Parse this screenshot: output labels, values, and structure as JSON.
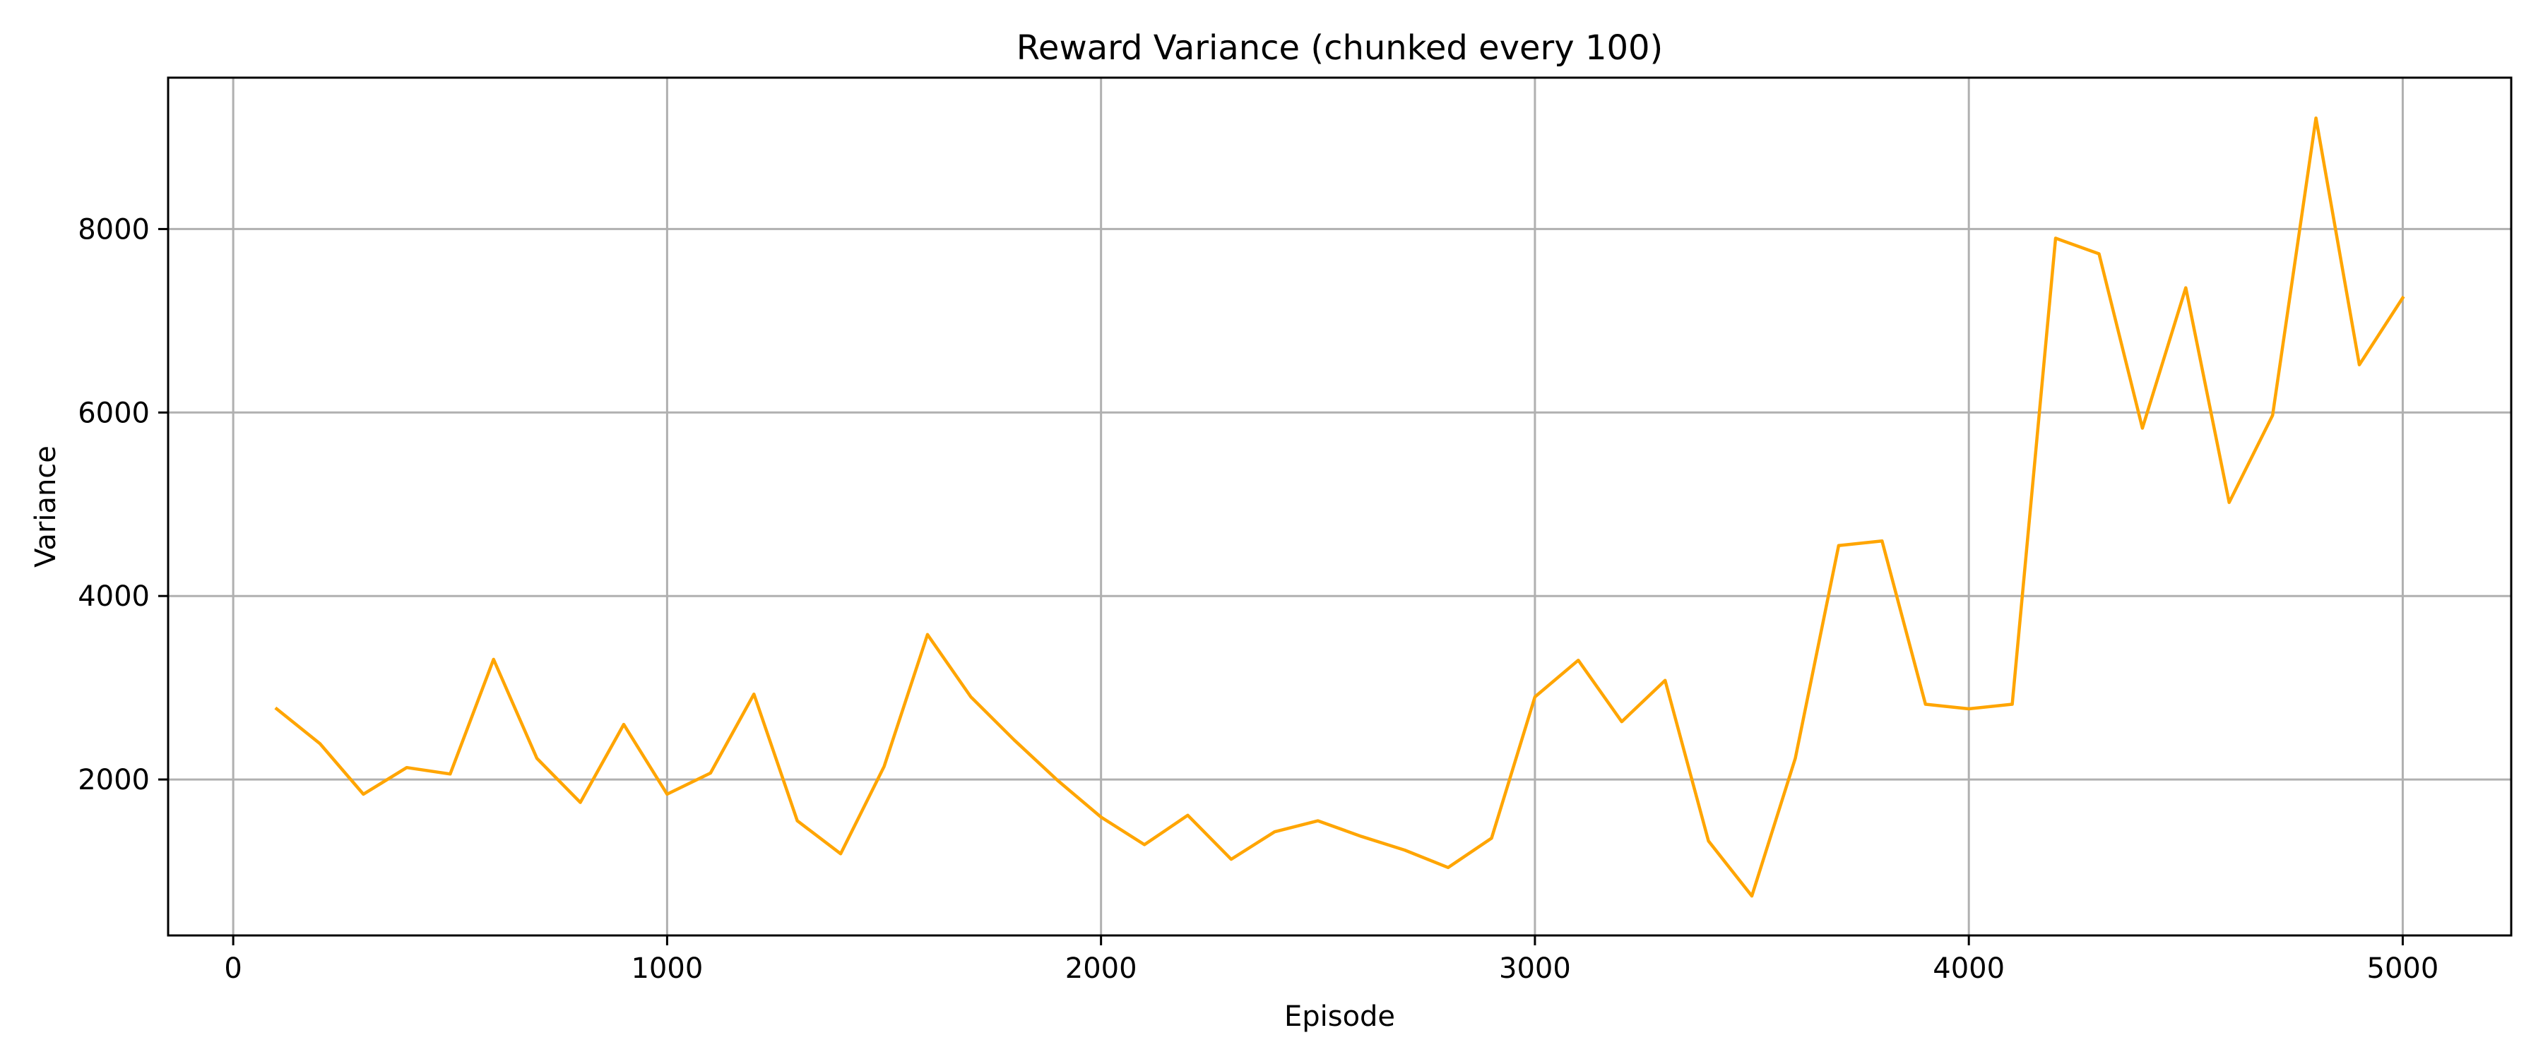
{
  "chart_data": {
    "type": "line",
    "title": "Reward Variance (chunked every 100)",
    "xlabel": "Episode",
    "ylabel": "Variance",
    "xlim": [
      -150,
      5250
    ],
    "ylim": [
      300,
      9650
    ],
    "x_ticks": [
      0,
      1000,
      2000,
      3000,
      4000,
      5000
    ],
    "y_ticks": [
      2000,
      4000,
      6000,
      8000
    ],
    "grid": true,
    "legend": "none",
    "series": [
      {
        "color": "#FFA500",
        "x": [
          100,
          200,
          300,
          400,
          500,
          600,
          700,
          800,
          900,
          1000,
          1100,
          1200,
          1300,
          1400,
          1500,
          1600,
          1700,
          1800,
          1900,
          2000,
          2100,
          2200,
          2300,
          2400,
          2500,
          2600,
          2700,
          2800,
          2900,
          3000,
          3100,
          3200,
          3300,
          3400,
          3500,
          3600,
          3700,
          3800,
          3900,
          4000,
          4100,
          4200,
          4300,
          4400,
          4500,
          4600,
          4700,
          4800,
          4900,
          5000
        ],
        "y": [
          2770,
          2390,
          1840,
          2130,
          2060,
          3310,
          2230,
          1750,
          2600,
          1840,
          2070,
          2930,
          1550,
          1190,
          2140,
          3580,
          2900,
          2430,
          1990,
          1590,
          1290,
          1610,
          1130,
          1430,
          1550,
          1380,
          1230,
          1040,
          1360,
          2900,
          3300,
          2630,
          3080,
          1330,
          730,
          2230,
          4550,
          4600,
          2820,
          2770,
          2820,
          7900,
          7730,
          5830,
          7360,
          5020,
          5970,
          9210,
          6520,
          7250
        ]
      }
    ]
  }
}
